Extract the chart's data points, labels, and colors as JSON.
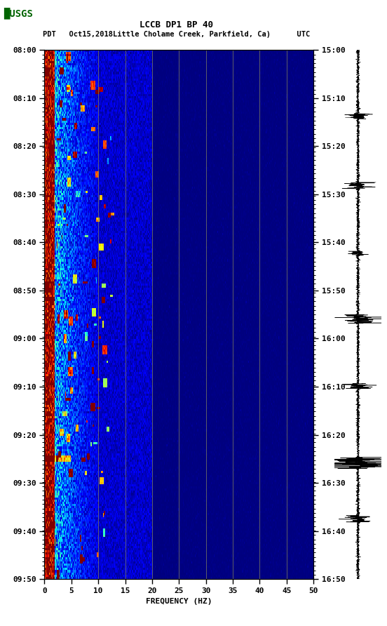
{
  "title_line1": "LCCB DP1 BP 40",
  "title_line2": "PDT   Oct15,2018Little Cholame Creek, Parkfield, Ca)      UTC",
  "left_time_labels": [
    "08:00",
    "08:10",
    "08:20",
    "08:30",
    "08:40",
    "08:50",
    "09:00",
    "09:10",
    "09:20",
    "09:30",
    "09:40",
    "09:50"
  ],
  "right_time_labels": [
    "15:00",
    "15:10",
    "15:20",
    "15:30",
    "15:40",
    "15:50",
    "16:00",
    "16:10",
    "16:20",
    "16:30",
    "16:40",
    "16:50"
  ],
  "freq_min": 0,
  "freq_max": 50,
  "freq_ticks": [
    0,
    5,
    10,
    15,
    20,
    25,
    30,
    35,
    40,
    45,
    50
  ],
  "xlabel": "FREQUENCY (HZ)",
  "time_steps": 240,
  "freq_steps": 500,
  "background_color": "#ffffff",
  "colormap": "jet",
  "vlines_x": [
    10,
    15,
    20,
    25,
    30,
    35,
    40,
    45
  ],
  "vline_color": "#808060",
  "fig_width": 5.52,
  "fig_height": 8.92
}
